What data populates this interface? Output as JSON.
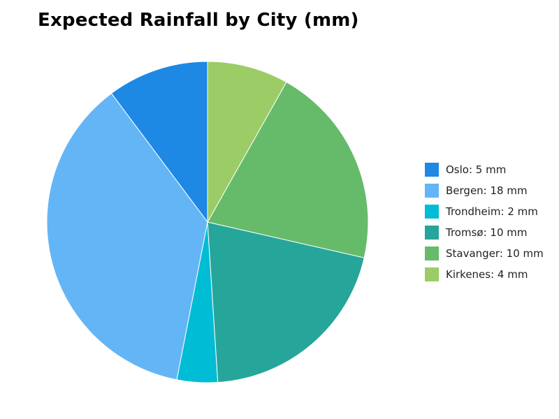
{
  "chart_data": {
    "type": "pie",
    "title": "Expected Rainfall by City (mm)",
    "categories": [
      "Oslo",
      "Bergen",
      "Trondheim",
      "Tromsø",
      "Stavanger",
      "Kirkenes"
    ],
    "values": [
      5,
      18,
      2,
      10,
      10,
      4
    ],
    "unit": "mm",
    "colors": [
      "#1e88e5",
      "#64b5f6",
      "#00bcd4",
      "#26a69a",
      "#66bb6a",
      "#9ccc65"
    ],
    "start_angle_deg": 90,
    "direction": "counterclockwise",
    "legend_position": "right",
    "legend": [
      {
        "label": "Oslo: 5 mm",
        "color": "#1e88e5"
      },
      {
        "label": "Bergen: 18 mm",
        "color": "#64b5f6"
      },
      {
        "label": "Trondheim: 2 mm",
        "color": "#00bcd4"
      },
      {
        "label": "Tromsø: 10 mm",
        "color": "#26a69a"
      },
      {
        "label": "Stavanger: 10 mm",
        "color": "#66bb6a"
      },
      {
        "label": "Kirkenes: 4 mm",
        "color": "#9ccc65"
      }
    ]
  }
}
